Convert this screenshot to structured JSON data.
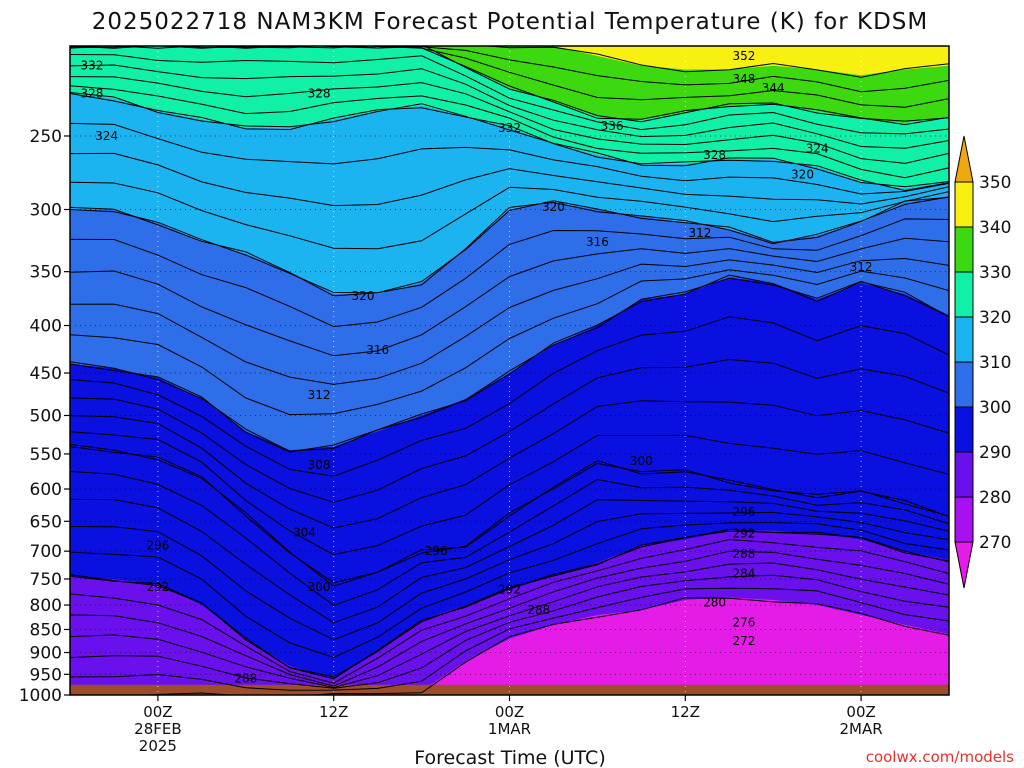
{
  "chart_data": {
    "type": "heatmap",
    "title": "2025022718 NAM3KM Forecast Potential Temperature (K) for KDSM",
    "xlabel": "Forecast Time (UTC)",
    "ylabel": "",
    "credit": "coolwx.com/models",
    "y_scale": "log",
    "y_axis_unit": "hPa",
    "ylim": [
      1000,
      200
    ],
    "y_ticks": [
      250,
      300,
      350,
      400,
      450,
      500,
      550,
      600,
      650,
      700,
      750,
      800,
      850,
      900,
      950,
      1000
    ],
    "y_tick_labels": [
      "250",
      "300",
      "350",
      "400",
      "450",
      "500",
      "550",
      "600",
      "650",
      "700",
      "750",
      "800",
      "850",
      "900",
      "950",
      "1000"
    ],
    "xlim": [
      "2025-02-27T18Z",
      "2025-03-02T06Z"
    ],
    "x_ticks": [
      {
        "time": "2025-02-28T00Z",
        "lines": [
          "00Z",
          "28FEB",
          "2025"
        ]
      },
      {
        "time": "2025-02-28T12Z",
        "lines": [
          "12Z"
        ]
      },
      {
        "time": "2025-03-01T00Z",
        "lines": [
          "00Z",
          "1MAR"
        ]
      },
      {
        "time": "2025-03-01T12Z",
        "lines": [
          "12Z"
        ]
      },
      {
        "time": "2025-03-02T00Z",
        "lines": [
          "00Z",
          "2MAR"
        ]
      }
    ],
    "grid": true,
    "colorbar": {
      "placement": "right",
      "levels": [
        270,
        280,
        290,
        300,
        310,
        320,
        330,
        340,
        350
      ],
      "labels": [
        "270",
        "280",
        "290",
        "300",
        "310",
        "320",
        "330",
        "340",
        "350"
      ],
      "colors": [
        "#e51ce8",
        "#a810f0",
        "#6a10ec",
        "#0a10e0",
        "#2e6ee8",
        "#1cb4f0",
        "#10f0a8",
        "#3cd810",
        "#f8f010",
        "#f0a810"
      ]
    },
    "contour_interval": 2,
    "contour_labels": [
      {
        "time_h": -4.5,
        "p": 210,
        "label": "332"
      },
      {
        "time_h": -4.5,
        "p": 225,
        "label": "328"
      },
      {
        "time_h": -3.5,
        "p": 250,
        "label": "324"
      },
      {
        "time_h": 11,
        "p": 225,
        "label": "328"
      },
      {
        "time_h": 24,
        "p": 245,
        "label": "332"
      },
      {
        "time_h": 31,
        "p": 244,
        "label": "336"
      },
      {
        "time_h": 38,
        "p": 262,
        "label": "328"
      },
      {
        "time_h": 45,
        "p": 258,
        "label": "324"
      },
      {
        "time_h": 44,
        "p": 275,
        "label": "320"
      },
      {
        "time_h": 40,
        "p": 217,
        "label": "348"
      },
      {
        "time_h": 40,
        "p": 205,
        "label": "352"
      },
      {
        "time_h": 42,
        "p": 222,
        "label": "344"
      },
      {
        "time_h": 27,
        "p": 298,
        "label": "320"
      },
      {
        "time_h": 30,
        "p": 325,
        "label": "316"
      },
      {
        "time_h": 37,
        "p": 318,
        "label": "312"
      },
      {
        "time_h": 48,
        "p": 346,
        "label": "312"
      },
      {
        "time_h": 14,
        "p": 372,
        "label": "320"
      },
      {
        "time_h": 15,
        "p": 425,
        "label": "316"
      },
      {
        "time_h": 11,
        "p": 475,
        "label": "312"
      },
      {
        "time_h": 11,
        "p": 565,
        "label": "308"
      },
      {
        "time_h": 10,
        "p": 668,
        "label": "304"
      },
      {
        "time_h": 11,
        "p": 765,
        "label": "300"
      },
      {
        "time_h": 33,
        "p": 560,
        "label": "300"
      },
      {
        "time_h": 40,
        "p": 635,
        "label": "296"
      },
      {
        "time_h": 40,
        "p": 670,
        "label": "292"
      },
      {
        "time_h": 40,
        "p": 705,
        "label": "288"
      },
      {
        "time_h": 40,
        "p": 740,
        "label": "284"
      },
      {
        "time_h": 38,
        "p": 795,
        "label": "280"
      },
      {
        "time_h": 40,
        "p": 835,
        "label": "276"
      },
      {
        "time_h": 40,
        "p": 875,
        "label": "272"
      },
      {
        "time_h": 19,
        "p": 700,
        "label": "296"
      },
      {
        "time_h": 24,
        "p": 770,
        "label": "292"
      },
      {
        "time_h": 26,
        "p": 810,
        "label": "288"
      },
      {
        "time_h": 0,
        "p": 690,
        "label": "296"
      },
      {
        "time_h": 0,
        "p": 765,
        "label": "292"
      },
      {
        "time_h": 6,
        "p": 960,
        "label": "288"
      }
    ],
    "series": [
      {
        "name": "",
        "time_h": [
          -6,
          -3,
          0,
          3,
          6,
          9,
          12,
          15,
          18,
          21,
          24,
          27,
          30,
          33,
          36,
          39,
          42,
          45,
          48,
          51,
          54
        ],
        "values_hPa": [
          540,
          545,
          555,
          585,
          640,
          700,
          760,
          740,
          700,
          690,
          640,
          600,
          560,
          575,
          575,
          590,
          600,
          610,
          605,
          620,
          640
        ]
      },
      {
        "name": "",
        "time_h": [
          -6,
          -3,
          0,
          3,
          6,
          9,
          12,
          15,
          18,
          21,
          24,
          27,
          30,
          33,
          36,
          39,
          42,
          45,
          48,
          51,
          54
        ],
        "values_hPa": [
          745,
          750,
          760,
          800,
          870,
          930,
          960,
          900,
          830,
          800,
          770,
          745,
          720,
          690,
          680,
          665,
          665,
          670,
          680,
          700,
          715
        ]
      },
      {
        "name": "",
        "time_h": [
          -6,
          -3,
          0,
          3,
          6,
          9,
          12,
          15,
          18,
          21,
          24,
          27,
          30,
          33,
          36,
          39,
          42,
          45,
          48,
          51,
          54
        ],
        "values_hPa": [
          1000,
          1000,
          1000,
          1000,
          1000,
          1000,
          1000,
          1000,
          990,
          920,
          870,
          840,
          820,
          810,
          790,
          785,
          790,
          800,
          820,
          840,
          860
        ]
      },
      {
        "name": "",
        "time_h": [
          -6,
          -3,
          0,
          3,
          6,
          9,
          12,
          15,
          18,
          21,
          24,
          27,
          30,
          33,
          36,
          39,
          42,
          45,
          48,
          51,
          54
        ],
        "values_hPa": [
          440,
          445,
          455,
          480,
          520,
          545,
          540,
          520,
          500,
          480,
          450,
          420,
          400,
          375,
          370,
          355,
          360,
          375,
          360,
          370,
          390
        ]
      },
      {
        "name": "",
        "time_h": [
          -6,
          -3,
          0,
          3,
          6,
          9,
          12,
          15,
          18,
          21,
          24,
          27,
          30,
          33,
          36,
          39,
          42,
          45,
          48,
          51,
          54
        ],
        "values_hPa": [
          300,
          300,
          310,
          325,
          335,
          350,
          370,
          370,
          360,
          330,
          300,
          295,
          300,
          305,
          310,
          315,
          325,
          320,
          310,
          295,
          290
        ]
      },
      {
        "name": "",
        "time_h": [
          -6,
          -3,
          0,
          3,
          6,
          9,
          12,
          15,
          18,
          21,
          24,
          27,
          30,
          33,
          36,
          39,
          42,
          45,
          48,
          51,
          54
        ],
        "values_hPa": [
          225,
          228,
          235,
          240,
          245,
          245,
          240,
          235,
          232,
          238,
          245,
          255,
          262,
          268,
          268,
          265,
          265,
          270,
          280,
          285,
          280
        ]
      },
      {
        "name": "",
        "time_h": [
          -6,
          -3,
          0,
          3,
          6,
          9,
          12,
          15,
          18,
          21,
          24,
          27,
          30,
          33,
          36,
          39,
          42,
          45,
          48,
          51,
          54
        ],
        "values_hPa": [
          200,
          200,
          200,
          200,
          200,
          200,
          200,
          200,
          200,
          210,
          222,
          230,
          238,
          240,
          236,
          232,
          230,
          235,
          240,
          242,
          238
        ]
      },
      {
        "name": "",
        "time_h": [
          -6,
          -3,
          0,
          3,
          6,
          9,
          12,
          15,
          18,
          21,
          24,
          27,
          30,
          33,
          36,
          39,
          42,
          45,
          48,
          51,
          54
        ],
        "values_hPa": [
          200,
          200,
          200,
          200,
          200,
          200,
          200,
          200,
          200,
          200,
          200,
          200,
          205,
          210,
          212,
          212,
          210,
          212,
          215,
          212,
          210
        ]
      }
    ]
  }
}
